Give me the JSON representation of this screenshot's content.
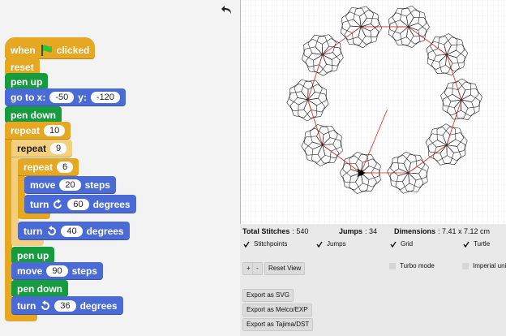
{
  "script": {
    "blocks": [
      [
        "when",
        "clicked"
      ],
      [
        "reset"
      ],
      [
        "pen up"
      ],
      [
        "go to x:",
        "-50",
        "y:",
        "-120"
      ],
      [
        "pen down"
      ],
      [
        "repeat",
        "10"
      ],
      [
        "repeat",
        "9"
      ],
      [
        "repeat",
        "6"
      ],
      [
        "move",
        "20",
        "steps"
      ],
      [
        "turn",
        "60",
        "degrees"
      ],
      [
        "turn",
        "40",
        "degrees"
      ],
      [
        "pen up"
      ],
      [
        "move",
        "90",
        "steps"
      ],
      [
        "pen down"
      ],
      [
        "turn",
        "36",
        "degrees"
      ]
    ]
  },
  "stats": [
    {
      "label": "Total Stitches",
      "value": ": 540"
    },
    {
      "label": "Jumps",
      "value": ": 34"
    },
    {
      "label": "Dimensions",
      "value": ": 7.41 x 7.12 cm"
    }
  ],
  "options": [
    {
      "label": "Stitchpoints",
      "checked": true
    },
    {
      "label": "Jumps",
      "checked": true
    },
    {
      "label": "Grid",
      "checked": true
    },
    {
      "label": "Turtle",
      "checked": true
    },
    {
      "label": "Turbo mode",
      "checked": false
    },
    {
      "label": "Imperial units",
      "checked": false
    }
  ],
  "view_buttons": [
    "+",
    "-",
    "Reset View"
  ],
  "export_buttons": [
    "Export as SVG",
    "Export as Melco/EXP",
    "Export as Tajima/DST"
  ]
}
